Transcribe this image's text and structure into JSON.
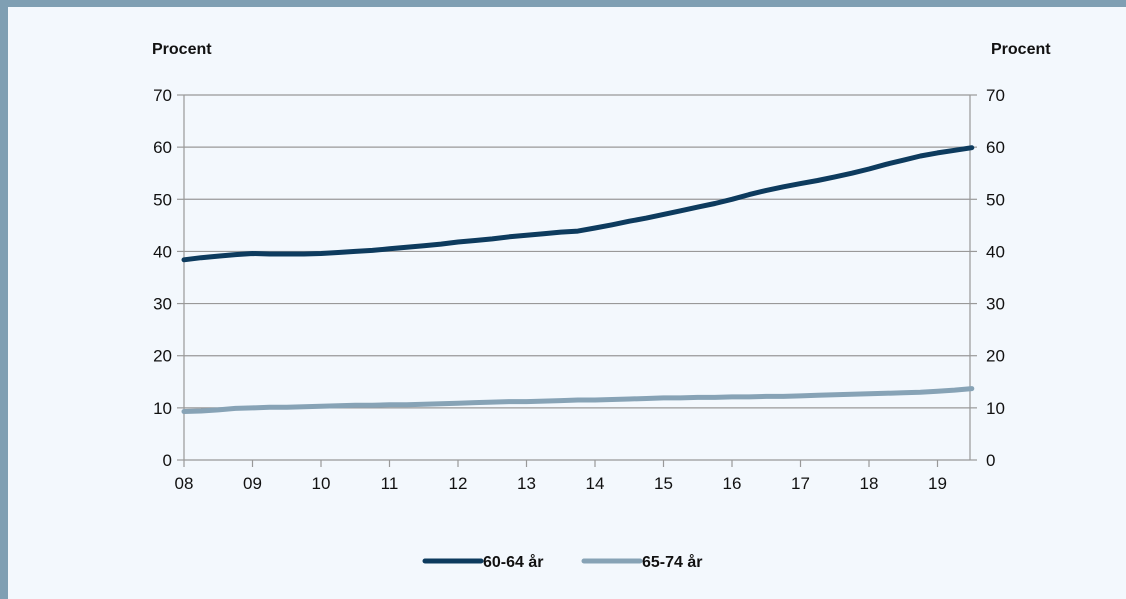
{
  "colors": {
    "frame": "#7f9fb3",
    "panel": "#f3f8fd",
    "series_60_64": "#0d3b5e",
    "series_65_74": "#87a3b6",
    "grid": "#999999"
  },
  "chart_data": {
    "type": "line",
    "title": "",
    "ylabel_left": "Procent",
    "ylabel_right": "Procent",
    "ylim": [
      0,
      70
    ],
    "yticks": [
      0,
      10,
      20,
      30,
      40,
      50,
      60,
      70
    ],
    "x_tick_labels": [
      "08",
      "09",
      "10",
      "11",
      "12",
      "13",
      "14",
      "15",
      "16",
      "17",
      "18",
      "19"
    ],
    "x": [
      2008.0,
      2008.25,
      2008.5,
      2008.75,
      2009.0,
      2009.25,
      2009.5,
      2009.75,
      2010.0,
      2010.25,
      2010.5,
      2010.75,
      2011.0,
      2011.25,
      2011.5,
      2011.75,
      2012.0,
      2012.25,
      2012.5,
      2012.75,
      2013.0,
      2013.25,
      2013.5,
      2013.75,
      2014.0,
      2014.25,
      2014.5,
      2014.75,
      2015.0,
      2015.25,
      2015.5,
      2015.75,
      2016.0,
      2016.25,
      2016.5,
      2016.75,
      2017.0,
      2017.25,
      2017.5,
      2017.75,
      2018.0,
      2018.25,
      2018.5,
      2018.75,
      2019.0,
      2019.25,
      2019.5
    ],
    "series": [
      {
        "name": "60-64 år",
        "color": "#0d3b5e",
        "values": [
          38.4,
          38.8,
          39.1,
          39.4,
          39.6,
          39.5,
          39.5,
          39.5,
          39.6,
          39.8,
          40.0,
          40.2,
          40.5,
          40.8,
          41.1,
          41.4,
          41.8,
          42.1,
          42.4,
          42.8,
          43.1,
          43.4,
          43.7,
          43.9,
          44.5,
          45.1,
          45.8,
          46.4,
          47.1,
          47.8,
          48.5,
          49.2,
          50.0,
          50.9,
          51.7,
          52.4,
          53.0,
          53.6,
          54.3,
          55.0,
          55.8,
          56.7,
          57.5,
          58.3,
          58.9,
          59.4,
          59.9
        ]
      },
      {
        "name": "65-74 år",
        "color": "#87a3b6",
        "values": [
          9.3,
          9.4,
          9.6,
          9.9,
          10.0,
          10.1,
          10.1,
          10.2,
          10.3,
          10.4,
          10.5,
          10.5,
          10.6,
          10.6,
          10.7,
          10.8,
          10.9,
          11.0,
          11.1,
          11.2,
          11.2,
          11.3,
          11.4,
          11.5,
          11.5,
          11.6,
          11.7,
          11.8,
          11.9,
          11.9,
          12.0,
          12.0,
          12.1,
          12.1,
          12.2,
          12.2,
          12.3,
          12.4,
          12.5,
          12.6,
          12.7,
          12.8,
          12.9,
          13.0,
          13.2,
          13.4,
          13.7
        ]
      }
    ],
    "grid": true,
    "legend_position": "bottom"
  }
}
